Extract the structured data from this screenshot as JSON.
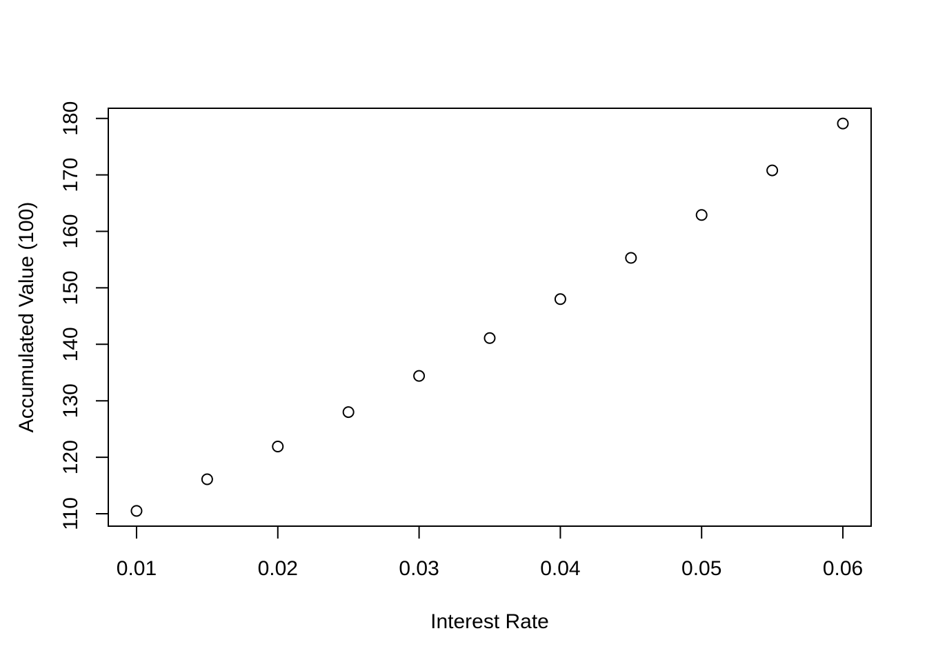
{
  "chart_data": {
    "type": "scatter",
    "title": "",
    "xlabel": "Interest Rate",
    "ylabel": "Accumulated Value (100)",
    "x": [
      0.01,
      0.015,
      0.02,
      0.025,
      0.03,
      0.035,
      0.04,
      0.045,
      0.05,
      0.055,
      0.06
    ],
    "y": [
      110.5,
      116.1,
      121.9,
      128.0,
      134.4,
      141.1,
      148.0,
      155.3,
      162.9,
      170.8,
      179.1
    ],
    "xlim": [
      0.008,
      0.062
    ],
    "ylim": [
      107.8,
      181.8
    ],
    "x_ticks": [
      0.01,
      0.02,
      0.03,
      0.04,
      0.05,
      0.06
    ],
    "x_tick_labels": [
      "0.01",
      "0.02",
      "0.03",
      "0.04",
      "0.05",
      "0.06"
    ],
    "y_ticks": [
      110,
      120,
      130,
      140,
      150,
      160,
      170,
      180
    ],
    "y_tick_labels": [
      "110",
      "120",
      "130",
      "140",
      "150",
      "160",
      "170",
      "180"
    ],
    "marker": "open-circle",
    "grid": false,
    "legend": "none",
    "colors": {
      "points": "#000000",
      "axes": "#000000",
      "background": "#ffffff"
    }
  }
}
